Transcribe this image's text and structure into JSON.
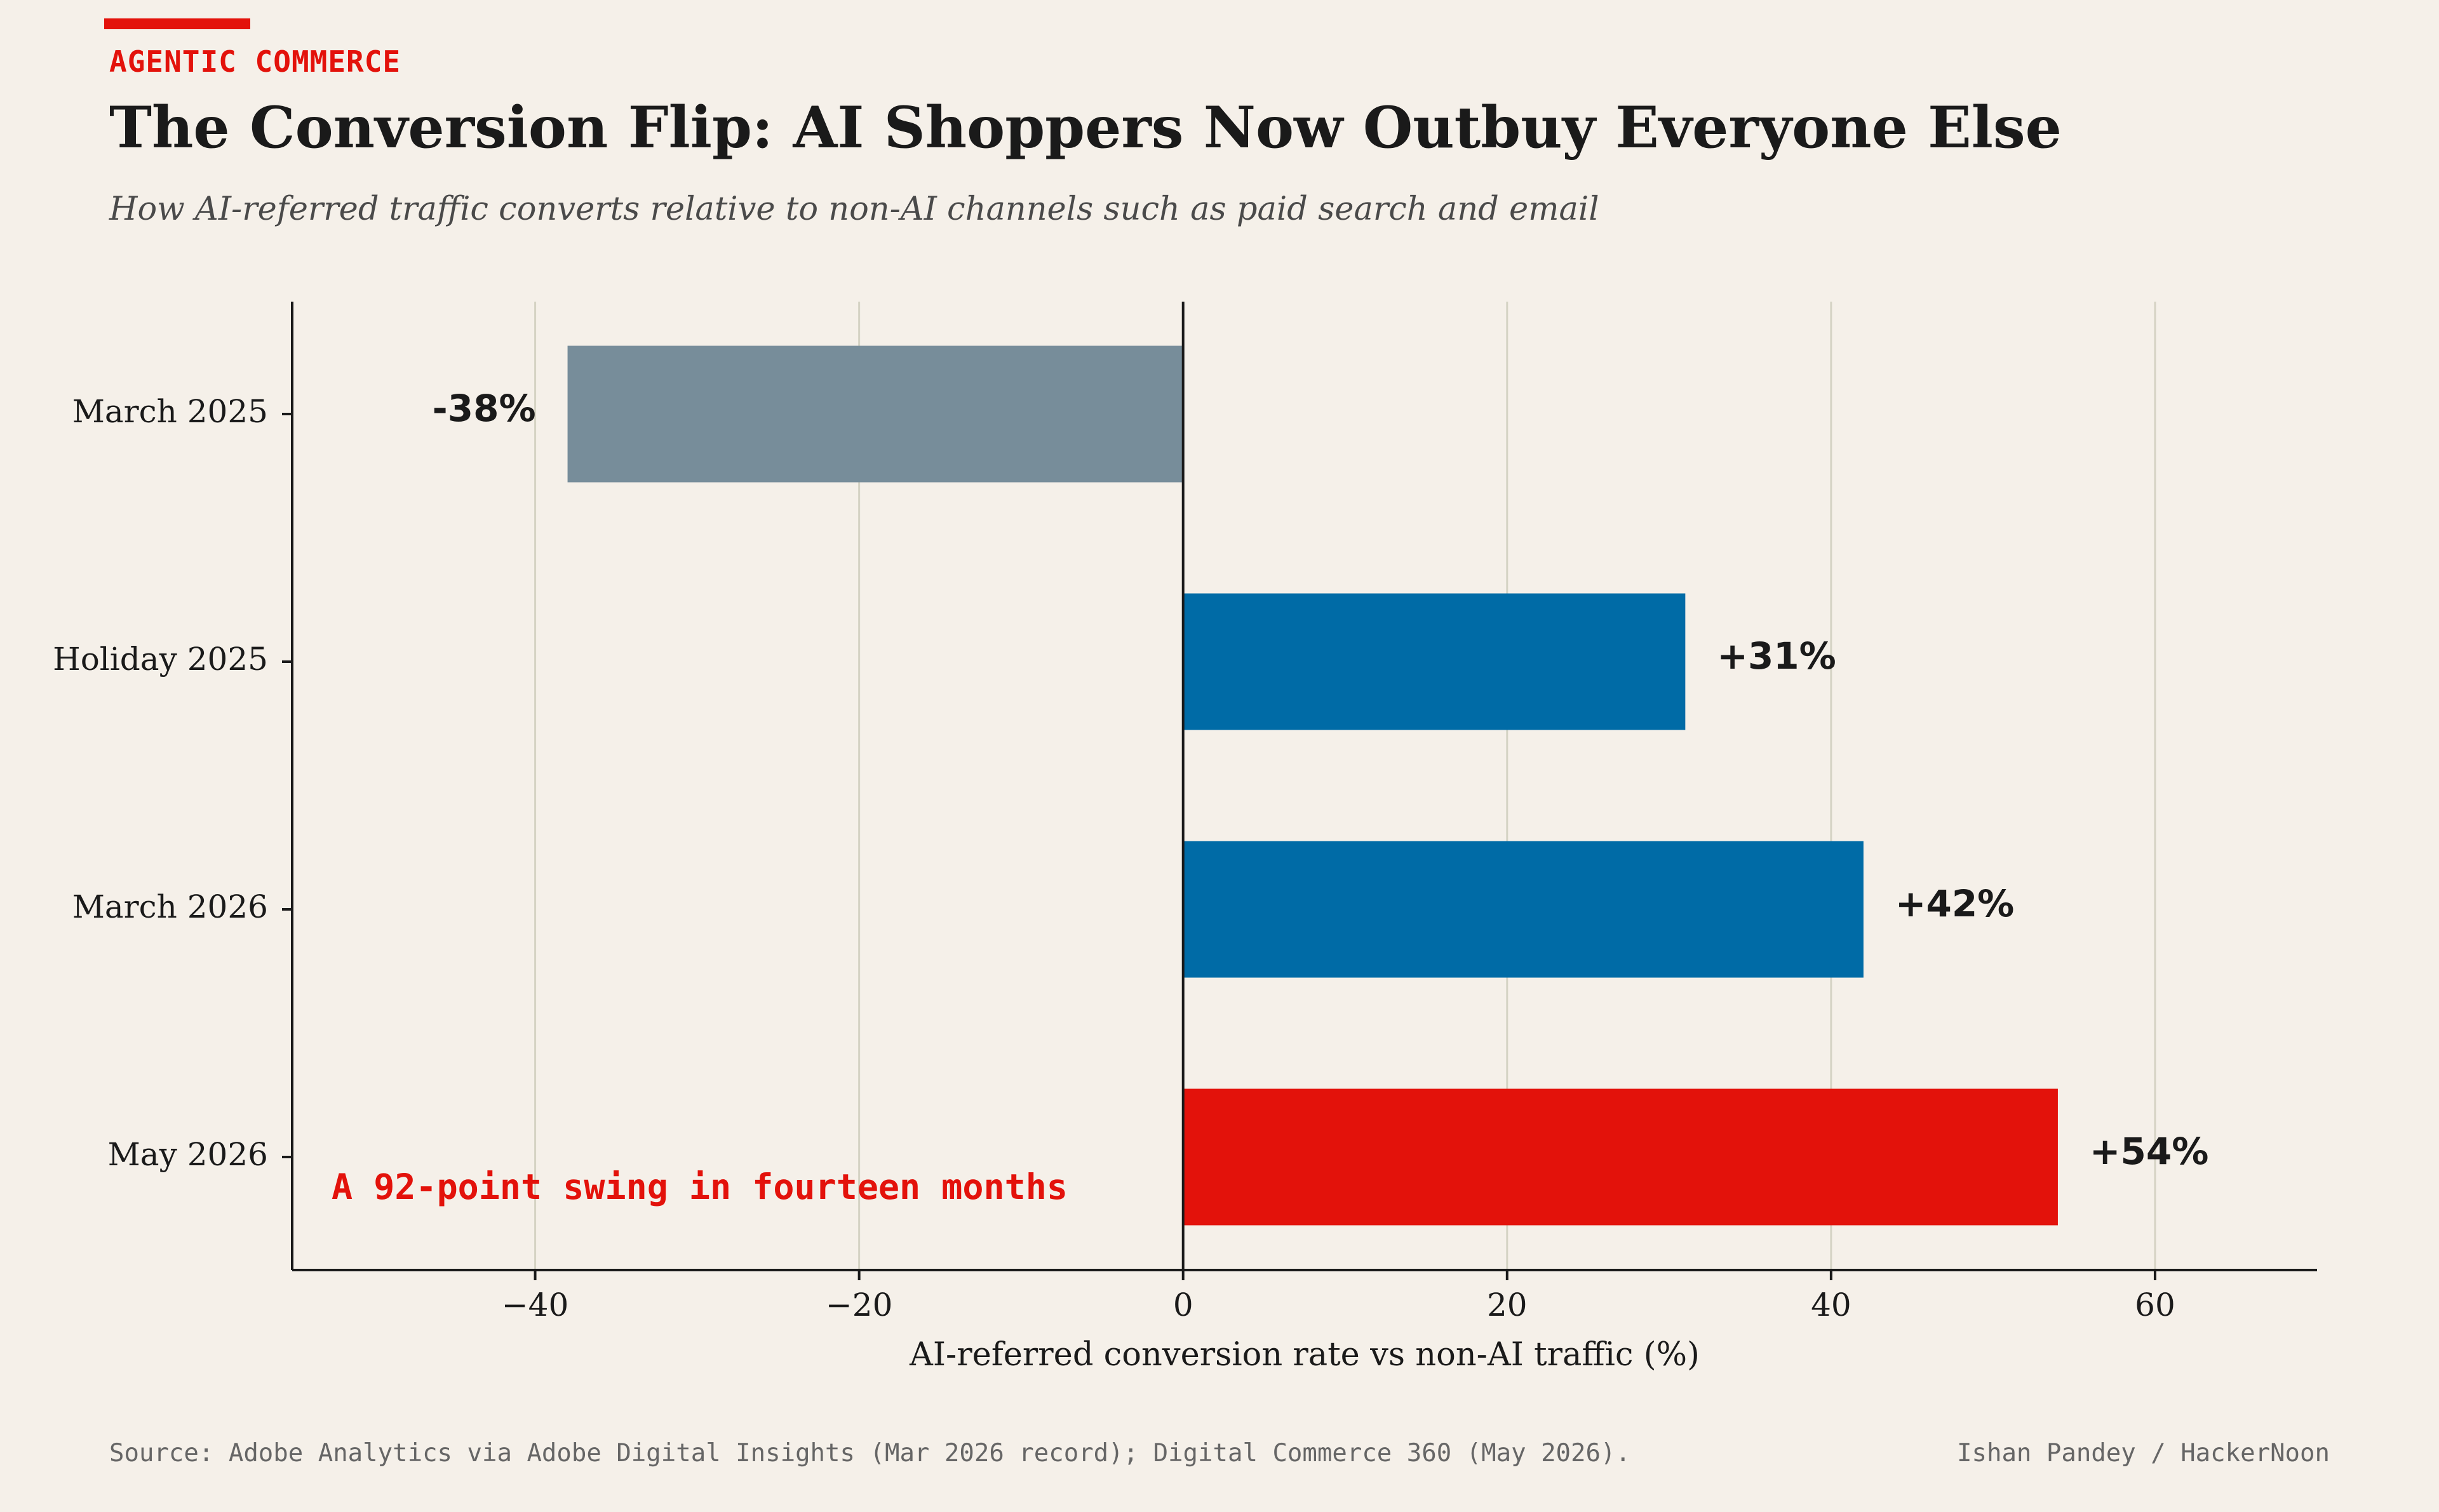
{
  "header": {
    "kicker": "AGENTIC COMMERCE",
    "title": "The Conversion Flip: AI Shoppers Now Outbuy Everyone Else",
    "subtitle": "How AI-referred traffic converts relative to non-AI channels such as paid search and email"
  },
  "colors": {
    "accent": "#e3120b",
    "negative": "#778d9a",
    "positive": "#006ba6",
    "highlight": "#e3120b",
    "grid": "#d5d3c4",
    "axis": "#1a1a1a"
  },
  "chart_data": {
    "type": "bar",
    "orientation": "horizontal",
    "categories": [
      "March 2025",
      "Holiday 2025",
      "March 2026",
      "May 2026"
    ],
    "values": [
      -38,
      31,
      42,
      54
    ],
    "value_labels": [
      "-38%",
      "+31%",
      "+42%",
      "+54%"
    ],
    "xlabel": "AI-referred conversion rate vs non-AI traffic (%)",
    "xlim": [
      -55,
      70
    ],
    "xticks": [
      -40,
      -20,
      0,
      20,
      40,
      60
    ],
    "xtick_labels": [
      "−40",
      "−20",
      "0",
      "20",
      "40",
      "60"
    ],
    "grid": "vertical",
    "annotation": "A 92-point swing in fourteen months"
  },
  "footer": {
    "source": "Source: Adobe Analytics via Adobe Digital Insights (Mar 2026 record); Digital Commerce 360 (May 2026).",
    "byline": "Ishan Pandey / HackerNoon"
  }
}
